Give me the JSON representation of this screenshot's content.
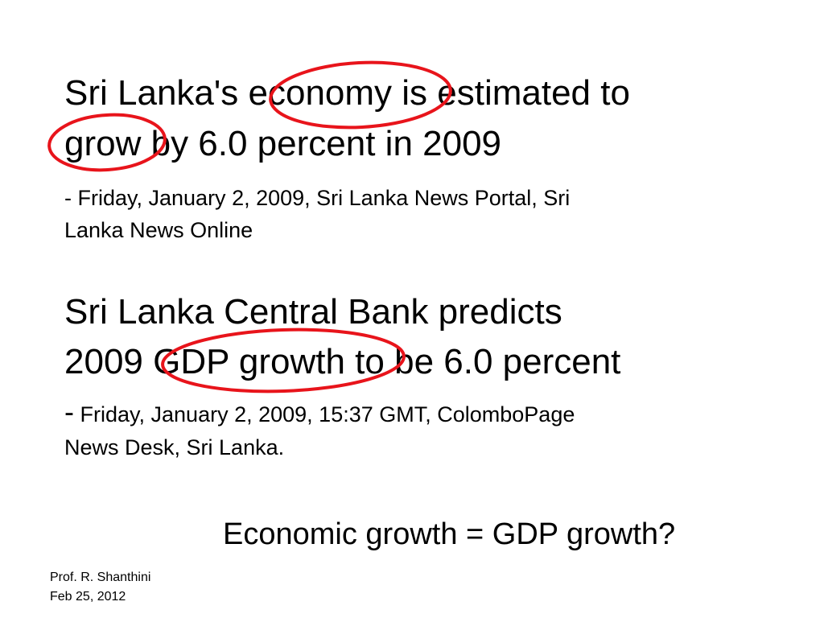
{
  "headline1": {
    "line1": "Sri Lanka's economy is estimated to",
    "line2": "grow by 6.0 percent in 2009"
  },
  "source1": {
    "line1": "- Friday, January 2, 2009, Sri Lanka News Portal, Sri",
    "line2": "Lanka News Online"
  },
  "headline2": {
    "line1": "Sri Lanka Central Bank predicts",
    "line2": "2009 GDP growth to be 6.0 percent"
  },
  "source2": {
    "dash": "-",
    "line1": "Friday, January 2, 2009, 15:37 GMT, ColomboPage",
    "line2": "News Desk, Sri Lanka."
  },
  "question": "Economic growth = GDP growth?",
  "footer": {
    "author": "Prof. R. Shanthini",
    "date": "Feb 25, 2012"
  },
  "highlight_color": "#e8141b"
}
